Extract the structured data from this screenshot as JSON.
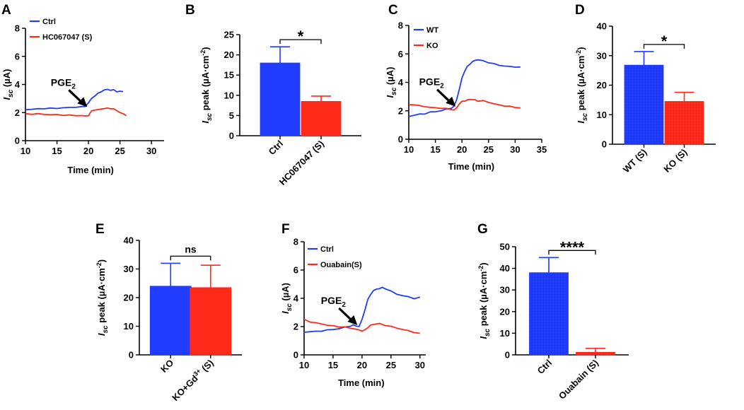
{
  "figure": {
    "colors": {
      "blue": "#1f3cff",
      "red": "#ff2a1a",
      "axis": "#000000"
    }
  },
  "chart_data": [
    {
      "panel": "A",
      "type": "line",
      "xlabel": "Time (min)",
      "ylabel": "Isc (µA)",
      "xlim": [
        10,
        32
      ],
      "ylim": [
        0,
        8
      ],
      "xticks": [
        "10",
        "15",
        "20",
        "25",
        "30"
      ],
      "yticks": [
        "0",
        "2",
        "4",
        "6",
        "8"
      ],
      "annotation": {
        "text": "PGE2",
        "x": 19.8,
        "y": 2.4
      },
      "series": [
        {
          "name": "Ctrl",
          "color": "#1f3cff",
          "x": [
            10,
            11,
            12,
            13,
            14,
            15,
            16,
            17,
            18,
            19,
            19.5,
            20,
            20.5,
            21,
            21.5,
            22,
            22.5,
            23,
            23.5,
            24,
            24.5,
            25,
            25.5
          ],
          "y": [
            2.2,
            2.25,
            2.25,
            2.3,
            2.3,
            2.3,
            2.35,
            2.35,
            2.4,
            2.4,
            2.45,
            2.7,
            3.0,
            3.2,
            3.35,
            3.5,
            3.6,
            3.65,
            3.6,
            3.6,
            3.5,
            3.5,
            3.5
          ]
        },
        {
          "name": "HC067047 (S)",
          "color": "#ff2a1a",
          "x": [
            10,
            11,
            12,
            13,
            14,
            15,
            16,
            17,
            18,
            19,
            19.5,
            20,
            20.5,
            21,
            21.5,
            22,
            22.5,
            23,
            23.5,
            24,
            24.5,
            25,
            25.5,
            26
          ],
          "y": [
            1.9,
            1.9,
            1.9,
            1.88,
            1.85,
            1.85,
            1.82,
            1.8,
            1.8,
            1.78,
            1.75,
            1.8,
            2.1,
            2.2,
            2.2,
            2.25,
            2.3,
            2.3,
            2.3,
            2.25,
            2.15,
            2.0,
            1.9,
            1.8
          ]
        }
      ]
    },
    {
      "panel": "B",
      "type": "bar",
      "ylabel": "Isc peak (µA·cm-2)",
      "ylim": [
        0,
        25
      ],
      "yticks": [
        "0",
        "5",
        "10",
        "15",
        "20",
        "25"
      ],
      "categories": [
        "Ctrl",
        "HC067047 (S)"
      ],
      "values": [
        18,
        8.5
      ],
      "errors": [
        4,
        1.3
      ],
      "colors": [
        "#1f3cff",
        "#ff2a1a"
      ],
      "significance": "*"
    },
    {
      "panel": "C",
      "type": "line",
      "xlabel": "Time (min)",
      "ylabel": "Isc (µA)",
      "xlim": [
        10,
        35
      ],
      "ylim": [
        0,
        8
      ],
      "xticks": [
        "10",
        "15",
        "20",
        "25",
        "30",
        "35"
      ],
      "yticks": [
        "0",
        "2",
        "4",
        "6",
        "8"
      ],
      "annotation": {
        "text": "PGE2",
        "x": 18.8,
        "y": 2.3
      },
      "series": [
        {
          "name": "WT",
          "color": "#1f3cff",
          "x": [
            10,
            11,
            12,
            13,
            14,
            15,
            16,
            17,
            18,
            18.5,
            19,
            19.5,
            20,
            20.5,
            21,
            21.5,
            22,
            22.5,
            23,
            24,
            25,
            26,
            27,
            28,
            29,
            30,
            31
          ],
          "y": [
            1.6,
            1.7,
            1.75,
            1.8,
            1.9,
            1.95,
            2.0,
            2.1,
            2.2,
            2.3,
            2.8,
            3.5,
            4.3,
            4.8,
            5.1,
            5.3,
            5.45,
            5.55,
            5.6,
            5.5,
            5.4,
            5.3,
            5.2,
            5.15,
            5.1,
            5.1,
            5.05
          ]
        },
        {
          "name": "KO",
          "color": "#ff2a1a",
          "x": [
            10,
            11,
            12,
            13,
            14,
            15,
            16,
            17,
            18,
            18.5,
            19,
            19.5,
            20,
            20.5,
            21,
            21.5,
            22,
            22.5,
            23,
            24,
            25,
            26,
            27,
            28,
            29,
            30,
            31
          ],
          "y": [
            2.4,
            2.45,
            2.35,
            2.3,
            2.25,
            2.2,
            2.2,
            2.15,
            2.1,
            2.05,
            2.2,
            2.5,
            2.65,
            2.7,
            2.75,
            2.8,
            2.8,
            2.75,
            2.7,
            2.7,
            2.6,
            2.5,
            2.4,
            2.35,
            2.3,
            2.25,
            2.2
          ]
        }
      ]
    },
    {
      "panel": "D",
      "type": "bar",
      "ylabel": "Isc peak (µA·cm-2)",
      "ylim": [
        0,
        40
      ],
      "yticks": [
        "0",
        "10",
        "20",
        "30",
        "40"
      ],
      "categories": [
        "WT (S)",
        "KO (S)"
      ],
      "values": [
        26.8,
        14.5
      ],
      "errors": [
        4.6,
        3.1
      ],
      "colors": [
        "#1f3cff",
        "#ff2a1a"
      ],
      "significance": "*"
    },
    {
      "panel": "E",
      "type": "bar",
      "ylabel": "Isc peak (µA·cm-2)",
      "ylim": [
        0,
        40
      ],
      "yticks": [
        "0",
        "10",
        "20",
        "30",
        "40"
      ],
      "categories": [
        "KO",
        "KO+Gd3+ (S)"
      ],
      "values": [
        24,
        23.5
      ],
      "errors": [
        8,
        7.8
      ],
      "colors": [
        "#1f3cff",
        "#ff2a1a"
      ],
      "significance": "ns"
    },
    {
      "panel": "F",
      "type": "line",
      "xlabel": "Time (min)",
      "ylabel": "Isc (µA)",
      "xlim": [
        10,
        31
      ],
      "ylim": [
        0,
        8
      ],
      "xticks": [
        "10",
        "15",
        "20",
        "25",
        "30"
      ],
      "yticks": [
        "0",
        "2",
        "4",
        "6",
        "8"
      ],
      "annotation": {
        "text": "PGE2",
        "x": 19.2,
        "y": 2.1
      },
      "series": [
        {
          "name": "Ctrl",
          "color": "#1f3cff",
          "x": [
            10,
            11,
            12,
            13,
            14,
            15,
            16,
            17,
            18,
            18.5,
            19,
            19.5,
            20,
            20.5,
            21,
            21.5,
            22,
            22.5,
            23,
            23.5,
            24,
            25,
            26,
            27,
            28,
            29,
            30
          ],
          "y": [
            1.6,
            1.65,
            1.65,
            1.7,
            1.75,
            1.8,
            1.85,
            1.95,
            2.05,
            2.1,
            2.05,
            2.0,
            2.5,
            3.2,
            3.9,
            4.3,
            4.55,
            4.65,
            4.7,
            4.75,
            4.7,
            4.5,
            4.3,
            4.2,
            4.1,
            4.0,
            4.05
          ]
        },
        {
          "name": "Ouabain(S)",
          "color": "#ff2a1a",
          "x": [
            10,
            11,
            12,
            13,
            14,
            15,
            16,
            17,
            18,
            19,
            19.5,
            20,
            20.5,
            21,
            21.5,
            22,
            22.5,
            23,
            24,
            25,
            26,
            27,
            28,
            29,
            30
          ],
          "y": [
            2.5,
            2.35,
            2.25,
            2.2,
            2.1,
            2.05,
            2.0,
            1.95,
            1.9,
            1.8,
            1.75,
            1.7,
            1.75,
            1.95,
            2.1,
            2.15,
            2.2,
            2.2,
            2.1,
            2.0,
            1.9,
            1.8,
            1.7,
            1.6,
            1.5
          ]
        }
      ]
    },
    {
      "panel": "G",
      "type": "bar",
      "ylabel": "Isc peak (µA·cm-2)",
      "ylim": [
        0,
        50
      ],
      "yticks": [
        "0",
        "10",
        "20",
        "30",
        "40",
        "50"
      ],
      "categories": [
        "Ctrl",
        "Ouabain (S)"
      ],
      "values": [
        38,
        1.2
      ],
      "errors": [
        7,
        1.8
      ],
      "colors": [
        "#1f3cff",
        "#ff2a1a"
      ],
      "significance": "****"
    }
  ]
}
